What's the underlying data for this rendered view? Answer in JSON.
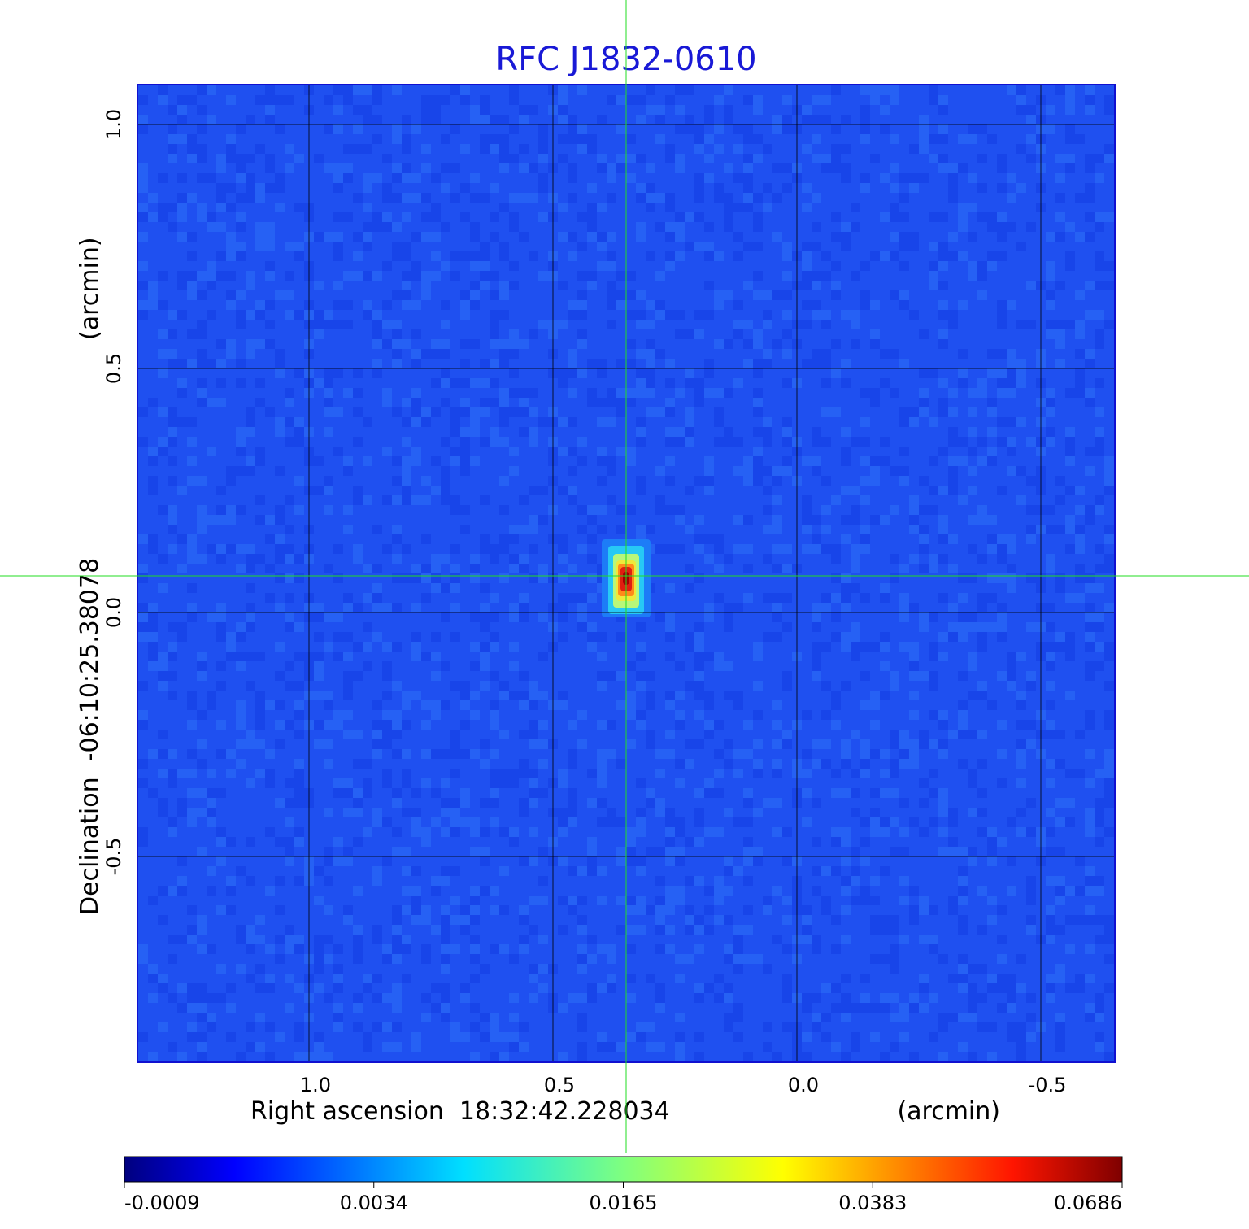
{
  "chart_data": {
    "type": "heatmap",
    "title": "RFC J1832-0610",
    "xlabel": "Right ascension  18:32:42.228034",
    "xunit": "(arcmin)",
    "ylabel": "Declination  -06:10:25.38078",
    "yunit": "(arcmin)",
    "x_ticks": [
      "1.0",
      "0.5",
      "0.0",
      "-0.5"
    ],
    "y_ticks": [
      "1.0",
      "0.5",
      "0.0",
      "-0.5"
    ],
    "xlim": [
      1.35,
      -0.65
    ],
    "ylim": [
      -0.92,
      1.08
    ],
    "grid": true,
    "colormap": "jet",
    "colorbar_ticks": [
      "-0.0009",
      "0.0034",
      "0.0165",
      "0.0383",
      "0.0686"
    ],
    "source_peak": {
      "x": 0.35,
      "y": 0.07,
      "value": 0.0686
    },
    "crosshair": {
      "x": 0.35,
      "y": 0.075,
      "color": "#22dd22"
    },
    "colors": {
      "title": "#1919d6",
      "background": "#1f50f0",
      "grid": "#000000"
    }
  }
}
